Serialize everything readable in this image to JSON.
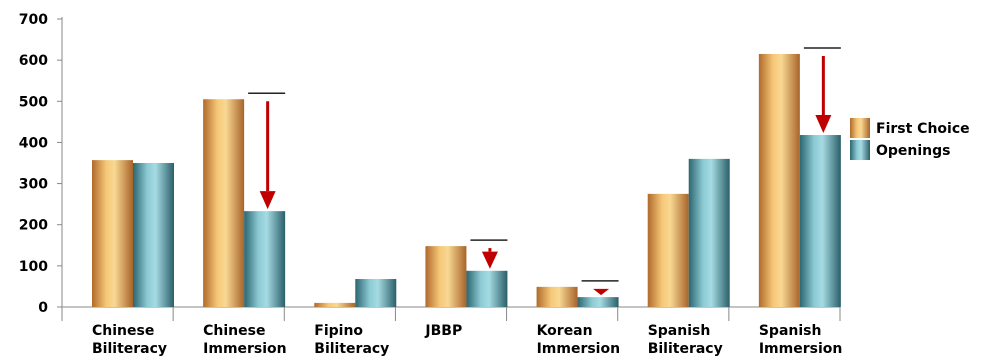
{
  "chart_data": {
    "type": "bar",
    "categories": [
      [
        "Chinese",
        "Biliteracy"
      ],
      [
        "Chinese",
        "Immersion"
      ],
      [
        "Fipino",
        "Biliteracy"
      ],
      [
        "JBBP"
      ],
      [
        "Korean",
        "Immersion"
      ],
      [
        "Spanish",
        "Biliteracy"
      ],
      [
        "Spanish",
        "Immersion"
      ]
    ],
    "series": [
      {
        "name": "First Choice",
        "values": [
          357,
          505,
          10,
          148,
          49,
          275,
          615
        ]
      },
      {
        "name": "Openings",
        "values": [
          350,
          233,
          68,
          88,
          24,
          360,
          418
        ]
      }
    ],
    "ylim": [
      0,
      700
    ],
    "yticks": [
      0,
      100,
      200,
      300,
      400,
      500,
      600,
      700
    ],
    "legend_position": "right",
    "annotations": [
      {
        "category_index": 1,
        "from": 505,
        "to": 233,
        "type": "drop-arrow"
      },
      {
        "category_index": 3,
        "from": 148,
        "to": 88,
        "type": "drop-arrow"
      },
      {
        "category_index": 4,
        "from": 49,
        "to": 24,
        "type": "drop-arrow"
      },
      {
        "category_index": 6,
        "from": 615,
        "to": 418,
        "type": "drop-arrow"
      }
    ],
    "colors": {
      "first_choice_dark": "#b8702f",
      "first_choice_light": "#f8d58c",
      "openings_dark": "#2f6f7a",
      "openings_light": "#9fd3dc",
      "arrow": "#c00000",
      "axis": "#888888"
    }
  }
}
